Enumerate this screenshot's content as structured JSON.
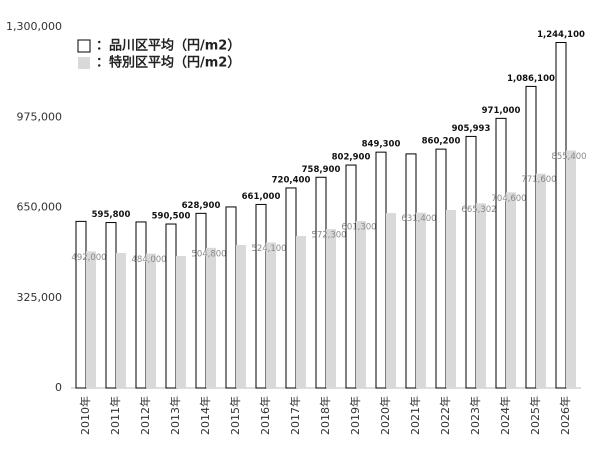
{
  "chart_data": {
    "type": "bar",
    "categories": [
      "2010年",
      "2011年",
      "2012年",
      "2013年",
      "2014年",
      "2015年",
      "2016年",
      "2017年",
      "2018年",
      "2019年",
      "2020年",
      "2021年",
      "2022年",
      "2023年",
      "2024年",
      "2025年",
      "2026年"
    ],
    "series": [
      {
        "name": "：品川区平均（円/m2）",
        "color": "#ffffff",
        "stroke": "#000000",
        "values": [
          600000,
          595800,
          598000,
          590500,
          628900,
          652000,
          661000,
          720400,
          758900,
          802900,
          849300,
          843000,
          860200,
          905993,
          971000,
          1086100,
          1244100
        ],
        "value_labels": [
          null,
          "595,800",
          null,
          "590,500",
          "628,900",
          null,
          "661,000",
          "720,400",
          "758,900",
          "802,900",
          "849,300",
          null,
          "860,200",
          "905,993",
          "971,000",
          "1,086,100",
          "1,244,100"
        ]
      },
      {
        "name": "：特別区平均（円/m2）",
        "color": "#d9d9d9",
        "values": [
          492000,
          486000,
          484000,
          475000,
          504800,
          515000,
          524100,
          547000,
          572300,
          601300,
          630000,
          631400,
          641000,
          665302,
          704600,
          771600,
          855400
        ],
        "value_labels": [
          "492,000",
          null,
          "484,000",
          null,
          "504,800",
          null,
          "524,100",
          null,
          "572,300",
          "601,300",
          null,
          "631,400",
          null,
          "665,302",
          "704,600",
          "771,600",
          "855,400"
        ]
      }
    ],
    "ylim": [
      0,
      1300000
    ],
    "yticks": [
      {
        "value": 0,
        "label": "0"
      },
      {
        "value": 325000,
        "label": "325,000"
      },
      {
        "value": 650000,
        "label": "650,000"
      },
      {
        "value": 975000,
        "label": "975,000"
      },
      {
        "value": 1300000,
        "label": "1,300,000"
      }
    ],
    "grid": false,
    "legend": "top-left"
  }
}
